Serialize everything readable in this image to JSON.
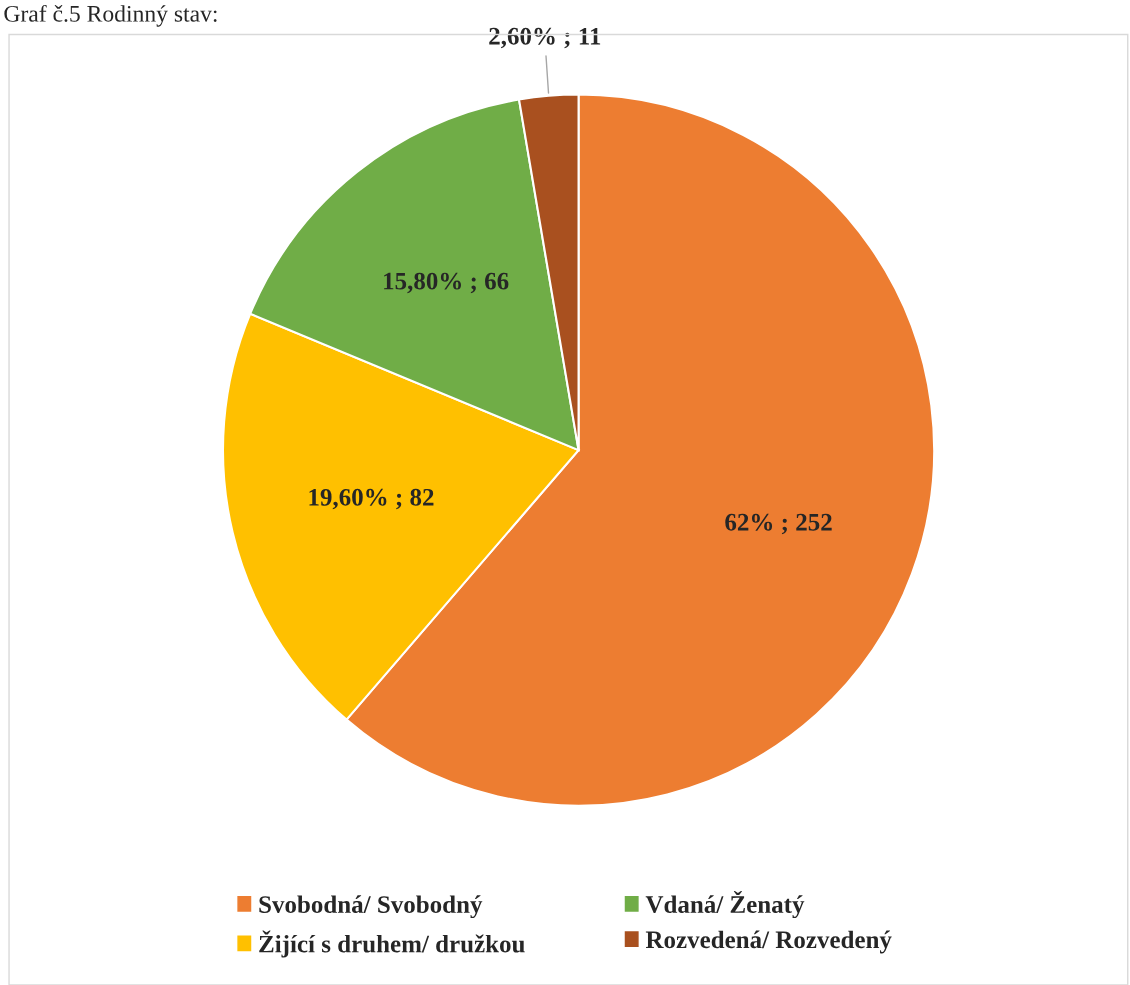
{
  "chart_data": {
    "type": "pie",
    "title": "Graf č.5 Rodinný stav:",
    "categories": [
      "Svobodná/ Svobodný",
      "Žijící s druhem/ družkou",
      "Vdaná/ Ženatý",
      "Rozvedená/ Rozvedený"
    ],
    "values": [
      252,
      82,
      66,
      11
    ],
    "colors": [
      "#ed7d31",
      "#ffc000",
      "#70ad47",
      "#a9501f"
    ],
    "value_labels": [
      "62% ; 252",
      "19,60% ; 82",
      "15,80% ; 66",
      "2,60% ; 11"
    ],
    "legend": "bottom"
  }
}
